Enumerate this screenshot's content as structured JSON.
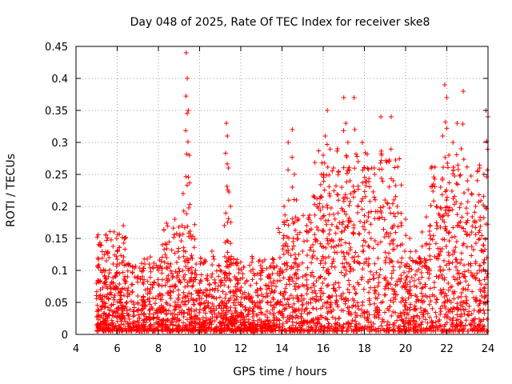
{
  "chart_data": {
    "type": "scatter",
    "title": "Day 048 of 2025, Rate Of TEC Index for receiver ske8",
    "xlabel": "GPS time / hours",
    "ylabel": "ROTI / TECUs",
    "xlim": [
      4,
      24
    ],
    "ylim": [
      0,
      0.45
    ],
    "x_ticks": [
      4,
      6,
      8,
      10,
      12,
      14,
      16,
      18,
      20,
      22,
      24
    ],
    "x_tick_labels": [
      "4",
      "6",
      "8",
      "10",
      "12",
      "14",
      "16",
      "18",
      "20",
      "22",
      "24"
    ],
    "y_ticks": [
      0,
      0.05,
      0.1,
      0.15,
      0.2,
      0.25,
      0.3,
      0.35,
      0.4,
      0.45
    ],
    "y_tick_labels": [
      "0",
      "0.05",
      "0.1",
      "0.15",
      "0.2",
      "0.25",
      "0.3",
      "0.35",
      "0.4",
      "0.45"
    ],
    "grid": true,
    "marker": "plus",
    "series_color": "#ff0000",
    "series": [
      {
        "name": "ROTI",
        "x": [
          5.0,
          5.1,
          5.2,
          5.3,
          5.4,
          5.6,
          5.8,
          6.0,
          6.1,
          6.2,
          6.3,
          6.35,
          6.5,
          6.8,
          7.0,
          7.3,
          7.6,
          8.0,
          8.2,
          8.4,
          8.6,
          8.8,
          9.0,
          9.2,
          9.35,
          9.4,
          9.45,
          9.5,
          9.6,
          9.8,
          10.0,
          10.3,
          10.6,
          11.0,
          11.2,
          11.3,
          11.35,
          11.4,
          11.5,
          11.7,
          12.0,
          12.2,
          12.4,
          12.6,
          12.8,
          13.0,
          13.3,
          13.6,
          13.9,
          14.1,
          14.3,
          14.5,
          14.6,
          14.7,
          14.8,
          15.0,
          15.2,
          15.5,
          15.7,
          15.9,
          16.0,
          16.1,
          16.2,
          16.3,
          16.5,
          16.7,
          16.9,
          17.0,
          17.1,
          17.2,
          17.3,
          17.5,
          17.7,
          17.9,
          18.0,
          18.2,
          18.5,
          18.8,
          19.0,
          19.2,
          19.3,
          19.4,
          19.6,
          19.8,
          20.0,
          20.2,
          20.5,
          20.8,
          21.0,
          21.2,
          21.5,
          21.7,
          21.8,
          21.9,
          22.0,
          22.1,
          22.3,
          22.5,
          22.7,
          22.8,
          23.0,
          23.2,
          23.4,
          23.6,
          23.8,
          23.9,
          24.0
        ],
        "values": [
          0.08,
          0.14,
          0.1,
          0.06,
          0.09,
          0.12,
          0.08,
          0.13,
          0.11,
          0.07,
          0.17,
          0.15,
          0.09,
          0.05,
          0.06,
          0.05,
          0.07,
          0.1,
          0.14,
          0.12,
          0.11,
          0.18,
          0.12,
          0.22,
          0.44,
          0.4,
          0.35,
          0.28,
          0.15,
          0.1,
          0.08,
          0.07,
          0.13,
          0.1,
          0.17,
          0.33,
          0.31,
          0.26,
          0.2,
          0.09,
          0.05,
          0.08,
          0.06,
          0.04,
          0.07,
          0.1,
          0.09,
          0.08,
          0.12,
          0.2,
          0.3,
          0.32,
          0.25,
          0.21,
          0.18,
          0.13,
          0.17,
          0.14,
          0.2,
          0.25,
          0.28,
          0.31,
          0.35,
          0.22,
          0.26,
          0.29,
          0.23,
          0.37,
          0.33,
          0.3,
          0.24,
          0.37,
          0.27,
          0.3,
          0.26,
          0.19,
          0.25,
          0.34,
          0.21,
          0.27,
          0.34,
          0.24,
          0.2,
          0.17,
          0.18,
          0.15,
          0.13,
          0.16,
          0.14,
          0.17,
          0.2,
          0.23,
          0.31,
          0.39,
          0.37,
          0.28,
          0.3,
          0.33,
          0.29,
          0.38,
          0.24,
          0.22,
          0.2,
          0.26,
          0.25,
          0.35,
          0.34
        ]
      }
    ],
    "dense_band": {
      "description": "continuous cloud of low-level points",
      "x_range": [
        5.0,
        24.0
      ],
      "typical_range": [
        0.0,
        0.1
      ]
    }
  }
}
